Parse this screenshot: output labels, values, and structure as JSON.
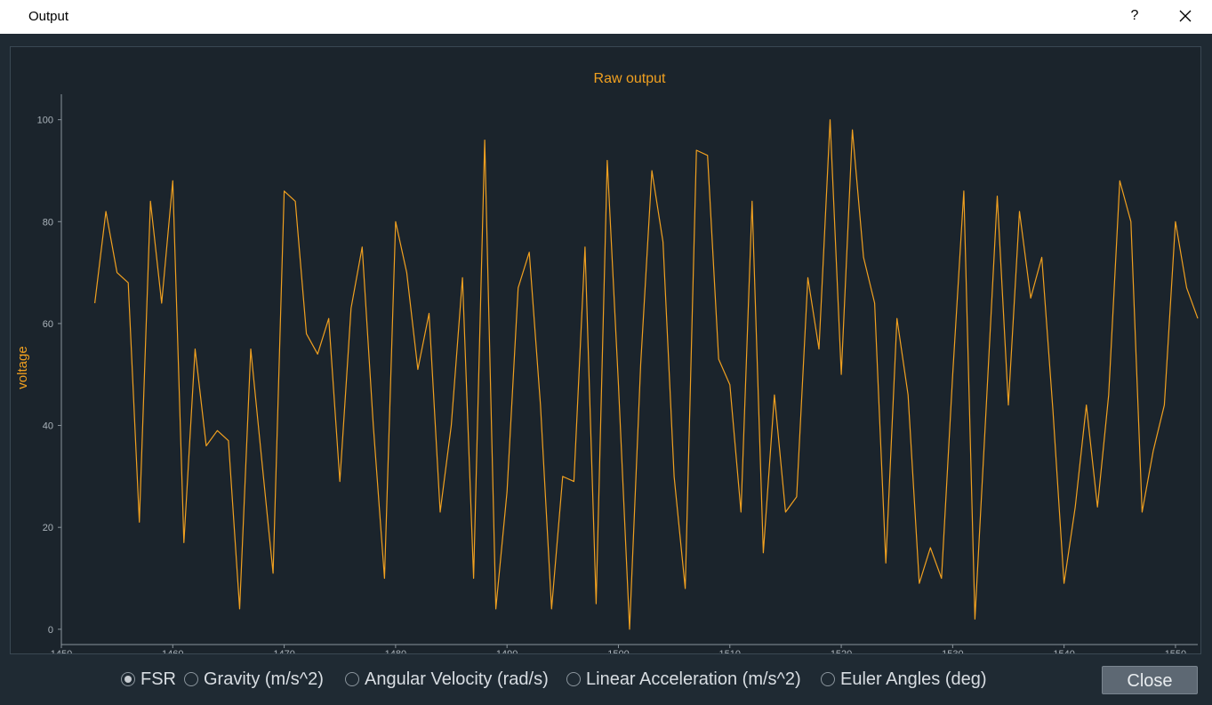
{
  "window": {
    "title": "Output",
    "help_label": "?"
  },
  "colors": {
    "series": "#f0a020",
    "title": "#f0a020",
    "axis": "#8a949c"
  },
  "chart_data": {
    "type": "line",
    "title": "Raw output",
    "xlabel": "",
    "ylabel": "voltage",
    "xlim": [
      1450,
      1552
    ],
    "ylim": [
      -3,
      105
    ],
    "xticks": [
      1450,
      1460,
      1470,
      1480,
      1490,
      1500,
      1510,
      1520,
      1530,
      1540,
      1550
    ],
    "yticks": [
      0,
      20,
      40,
      60,
      80,
      100
    ],
    "grid": false,
    "series": [
      {
        "x": [
          1453,
          1454,
          1455,
          1456,
          1457,
          1458,
          1459,
          1460,
          1461,
          1462,
          1463,
          1464,
          1465,
          1466,
          1467,
          1468,
          1469,
          1470,
          1471,
          1472,
          1473,
          1474,
          1475,
          1476,
          1477,
          1478,
          1479,
          1480,
          1481,
          1482,
          1483,
          1484,
          1485,
          1486,
          1487,
          1488,
          1489,
          1490,
          1491,
          1492,
          1493,
          1494,
          1495,
          1496,
          1497,
          1498,
          1499,
          1500,
          1501,
          1502,
          1503,
          1504,
          1505,
          1506,
          1507,
          1508,
          1509,
          1510,
          1511,
          1512,
          1513,
          1514,
          1515,
          1516,
          1517,
          1518,
          1519,
          1520,
          1521,
          1522,
          1523,
          1524,
          1525,
          1526,
          1527,
          1528,
          1529,
          1530,
          1531,
          1532,
          1533,
          1534,
          1535,
          1536,
          1537,
          1538,
          1539,
          1540,
          1541,
          1542,
          1543,
          1544,
          1545,
          1546,
          1547,
          1548,
          1549,
          1550,
          1551,
          1552
        ],
        "y": [
          64,
          82,
          70,
          68,
          21,
          84,
          64,
          88,
          17,
          55,
          36,
          39,
          37,
          4,
          55,
          33,
          11,
          86,
          84,
          58,
          54,
          61,
          29,
          63,
          75,
          40,
          10,
          80,
          70,
          51,
          62,
          23,
          40,
          69,
          10,
          96,
          4,
          27,
          67,
          74,
          44,
          4,
          30,
          29,
          75,
          5,
          92,
          48,
          0,
          52,
          90,
          76,
          30,
          8,
          94,
          93,
          53,
          48,
          23,
          84,
          15,
          46,
          23,
          26,
          69,
          55,
          100,
          50,
          98,
          73,
          64,
          13,
          61,
          46,
          9,
          16,
          10,
          50,
          86,
          2,
          43,
          85,
          44,
          82,
          65,
          73,
          43,
          9,
          24,
          44,
          24,
          46,
          88,
          80,
          23,
          35,
          44,
          80,
          67,
          61
        ]
      }
    ]
  },
  "controls": {
    "options": [
      {
        "label": "FSR",
        "checked": true
      },
      {
        "label": "Gravity (m/s^2)",
        "checked": false
      },
      {
        "label": "Angular Velocity (rad/s)",
        "checked": false
      },
      {
        "label": "Linear Acceleration (m/s^2)",
        "checked": false
      },
      {
        "label": "Euler Angles (deg)",
        "checked": false
      }
    ],
    "close_label": "Close"
  }
}
